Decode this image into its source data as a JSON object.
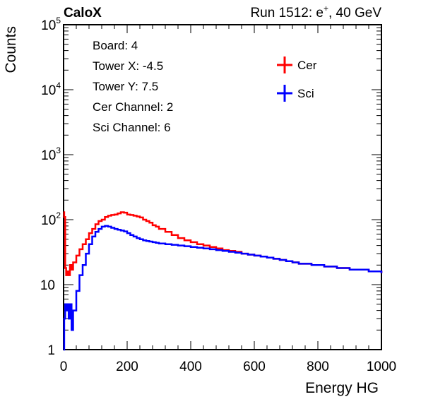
{
  "header": {
    "left": "CaloX",
    "right_prefix": "Run 1512: e",
    "right_sup": "+",
    "right_suffix": ", 40 GeV"
  },
  "info_box": {
    "lines": [
      "Board: 4",
      "Tower X: -4.5",
      "Tower Y: 7.5",
      "Cer Channel: 2",
      "Sci Channel: 6"
    ]
  },
  "colors": {
    "cer": "#ff0000",
    "sci": "#0000ff",
    "axis": "#000000"
  },
  "chart_data": {
    "type": "line",
    "xlabel": "Energy HG",
    "ylabel": "Counts",
    "xlim": [
      0,
      1000
    ],
    "ylim": [
      1,
      100000
    ],
    "yscale": "log",
    "x_ticks": [
      0,
      200,
      400,
      600,
      800,
      1000
    ],
    "x_tick_labels": [
      "0",
      "200",
      "400",
      "600",
      "800",
      "1000"
    ],
    "y_tick_labels": [
      {
        "value": 1,
        "base": "1",
        "exp": ""
      },
      {
        "value": 10,
        "base": "10",
        "exp": ""
      },
      {
        "value": 100,
        "base": "10",
        "exp": "2"
      },
      {
        "value": 1000,
        "base": "10",
        "exp": "3"
      },
      {
        "value": 10000,
        "base": "10",
        "exp": "4"
      },
      {
        "value": 100000,
        "base": "10",
        "exp": "5"
      }
    ],
    "legend_position": "top-right",
    "series": [
      {
        "name": "Cer",
        "color": "#ff0000",
        "x": [
          0,
          2,
          5,
          8,
          12,
          16,
          20,
          25,
          30,
          40,
          50,
          60,
          70,
          80,
          90,
          100,
          110,
          120,
          130,
          140,
          150,
          160,
          170,
          180,
          190,
          200,
          210,
          220,
          230,
          240,
          250,
          260,
          270,
          280,
          290,
          300,
          320,
          340,
          360,
          380,
          400,
          420,
          440,
          460,
          480,
          500,
          520,
          540,
          560,
          580,
          600,
          620,
          640,
          660,
          680,
          700,
          720,
          740,
          760,
          780,
          800,
          820,
          840,
          860,
          880,
          900,
          920,
          940,
          960,
          980,
          1000
        ],
        "y": [
          130,
          110,
          18,
          14,
          16,
          14,
          20,
          17,
          22,
          28,
          35,
          42,
          50,
          62,
          72,
          85,
          95,
          100,
          110,
          115,
          118,
          120,
          125,
          130,
          128,
          120,
          118,
          115,
          112,
          108,
          100,
          95,
          90,
          82,
          78,
          72,
          65,
          58,
          52,
          48,
          45,
          42,
          40,
          38,
          36,
          34,
          33,
          32,
          30,
          29,
          28,
          27,
          26,
          25,
          24,
          23,
          22,
          21,
          21,
          20,
          20,
          19,
          19,
          18,
          18,
          17,
          17,
          17,
          16,
          16,
          15
        ]
      },
      {
        "name": "Sci",
        "color": "#0000ff",
        "x": [
          0,
          2,
          5,
          8,
          12,
          16,
          20,
          25,
          30,
          40,
          50,
          60,
          70,
          80,
          90,
          100,
          110,
          120,
          130,
          140,
          150,
          160,
          170,
          180,
          190,
          200,
          210,
          220,
          230,
          240,
          250,
          260,
          270,
          280,
          290,
          300,
          320,
          340,
          360,
          380,
          400,
          420,
          440,
          460,
          480,
          500,
          520,
          540,
          560,
          580,
          600,
          620,
          640,
          660,
          680,
          700,
          720,
          740,
          760,
          780,
          800,
          820,
          840,
          860,
          880,
          900,
          920,
          940,
          960,
          980,
          1000
        ],
        "y": [
          1,
          3,
          5,
          4,
          5,
          3,
          5,
          2,
          4,
          8,
          14,
          20,
          30,
          42,
          55,
          65,
          72,
          78,
          80,
          78,
          75,
          72,
          70,
          68,
          66,
          62,
          58,
          55,
          52,
          50,
          48,
          47,
          46,
          45,
          44,
          43,
          42,
          41,
          40,
          39,
          38,
          37,
          36,
          35,
          34,
          33,
          32,
          31,
          30,
          29,
          28,
          27,
          26,
          25,
          24,
          23,
          22,
          21,
          21,
          20,
          20,
          19,
          19,
          18,
          18,
          17,
          17,
          17,
          16,
          16,
          15
        ]
      }
    ]
  }
}
